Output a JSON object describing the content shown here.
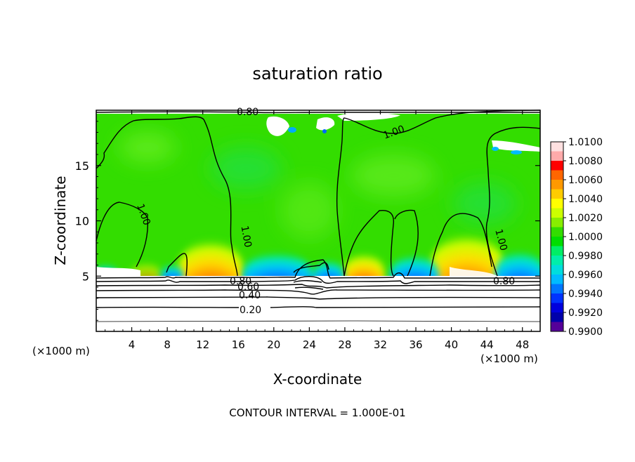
{
  "chart_data": {
    "type": "heatmap",
    "title": "saturation ratio",
    "xlabel": "X-coordinate",
    "ylabel": "Z-coordinate",
    "x_unit_left": "(×1000 m)",
    "x_unit_right": "(×1000 m)",
    "footer": "CONTOUR INTERVAL = 1.000E-01",
    "xlim": [
      0,
      50
    ],
    "ylim": [
      0,
      20
    ],
    "x_ticks": [
      4,
      8,
      12,
      16,
      20,
      24,
      28,
      32,
      36,
      40,
      44,
      48
    ],
    "y_ticks": [
      5,
      10,
      15
    ],
    "colorbar": {
      "range": [
        0.99,
        1.01
      ],
      "labels": [
        "1.0100",
        "1.0080",
        "1.0060",
        "1.0040",
        "1.0020",
        "1.0000",
        "0.9980",
        "0.9960",
        "0.9940",
        "0.9920",
        "0.9900"
      ],
      "colors": [
        "#ffe0e0",
        "#ffaaaa",
        "#ff0000",
        "#ff6600",
        "#ff9900",
        "#ffcc00",
        "#ffff00",
        "#ccff00",
        "#88ee00",
        "#33dd00",
        "#00dd00",
        "#00ee66",
        "#00eeaa",
        "#00dddd",
        "#00bbff",
        "#0077ff",
        "#0033ff",
        "#0000dd",
        "#0000aa",
        "#550099"
      ]
    },
    "contour_labels": [
      {
        "text": "0.80",
        "x": 20.2,
        "z": 19.5
      },
      {
        "text": "1.00",
        "x": 34.0,
        "z": 18.2
      },
      {
        "text": "1.00",
        "x": 5.0,
        "z": 10.5
      },
      {
        "text": "1.00",
        "x": 16.2,
        "z": 9.0
      },
      {
        "text": "1.00",
        "x": 45.5,
        "z": 8.0
      },
      {
        "text": "0.80",
        "x": 16.5,
        "z": 4.6
      },
      {
        "text": "0.60",
        "x": 17.3,
        "z": 4.1
      },
      {
        "text": "0.40",
        "x": 18.0,
        "z": 3.3
      },
      {
        "text": "0.20",
        "x": 17.8,
        "z": 2.0
      },
      {
        "text": "0.80",
        "x": 46.5,
        "z": 4.7
      }
    ]
  }
}
